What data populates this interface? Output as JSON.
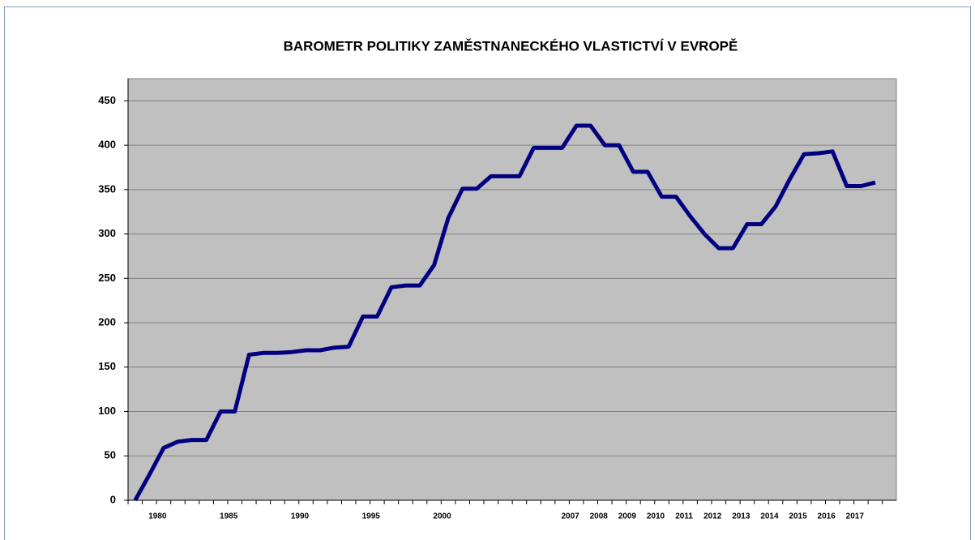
{
  "chart_data": {
    "type": "line",
    "title": "BAROMETR POLITIKY ZAMĚSTNANECKÉHO  VLASTICTVÍ V EVROPĚ",
    "categories": [
      null,
      "1980",
      null,
      null,
      null,
      null,
      "1985",
      null,
      null,
      null,
      null,
      "1990",
      null,
      null,
      null,
      null,
      "1995",
      null,
      null,
      null,
      null,
      "2000",
      null,
      null,
      null,
      null,
      null,
      null,
      null,
      null,
      "2007",
      null,
      "2008",
      null,
      "2009",
      null,
      "2010",
      null,
      "2011",
      null,
      "2012",
      null,
      "2013",
      null,
      "2014",
      null,
      "2015",
      null,
      "2016",
      null,
      "2017",
      null,
      null
    ],
    "series": [
      {
        "name": "Barometr",
        "color": "#000080",
        "values": [
          0,
          29,
          59,
          66,
          68,
          68,
          100,
          100,
          164,
          166,
          166,
          167,
          169,
          169,
          172,
          173,
          207,
          207,
          240,
          242,
          242,
          265,
          318,
          351,
          351,
          365,
          365,
          365,
          397,
          397,
          397,
          422,
          422,
          400,
          400,
          370,
          370,
          342,
          342,
          320,
          300,
          284,
          284,
          311,
          311,
          331,
          362,
          390,
          391,
          393,
          354,
          354,
          358
        ]
      }
    ],
    "ylim": [
      0,
      475
    ],
    "yticks": [
      0,
      50,
      100,
      150,
      200,
      250,
      300,
      350,
      400,
      450
    ],
    "grid": true
  }
}
